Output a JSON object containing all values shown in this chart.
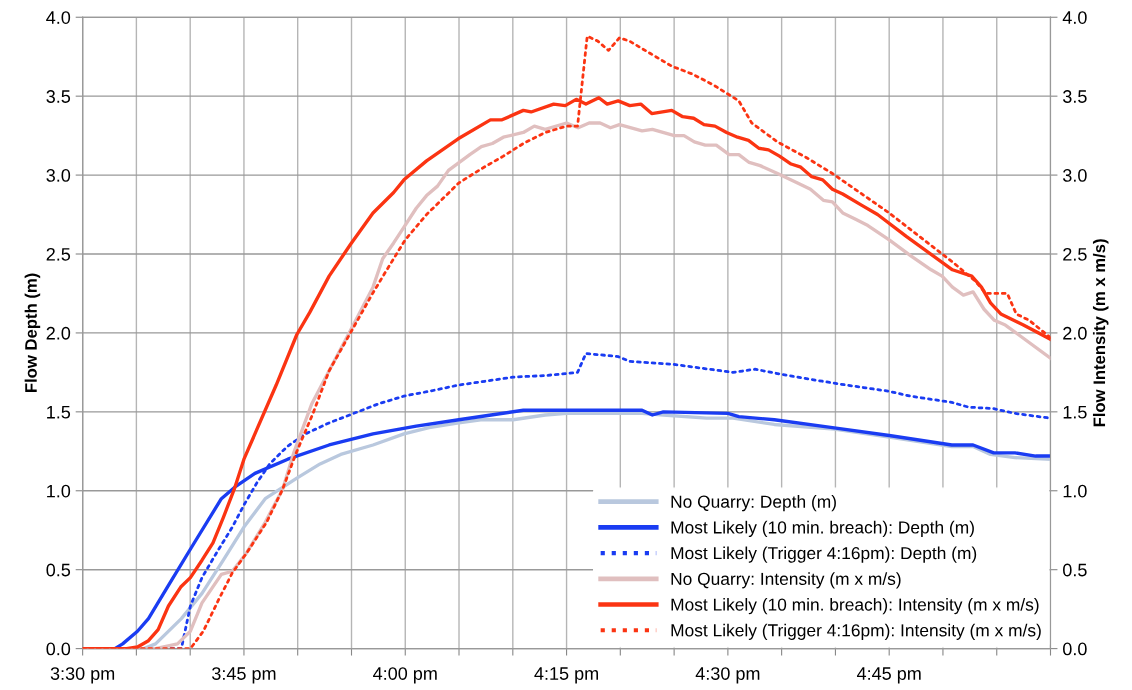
{
  "chart_data": {
    "type": "line",
    "ylabel": "Flow Depth (m)",
    "y2label": "Flow Intensity (m x m/s)",
    "xlim": [
      15.5,
      17.0
    ],
    "xticks": [
      {
        "value": 15.5,
        "label": "3:30 pm"
      },
      {
        "value": 15.5833,
        "label": null
      },
      {
        "value": 15.6667,
        "label": null
      },
      {
        "value": 15.75,
        "label": "3:45 pm"
      },
      {
        "value": 15.8333,
        "label": null
      },
      {
        "value": 15.9167,
        "label": null
      },
      {
        "value": 16.0,
        "label": "4:00 pm"
      },
      {
        "value": 16.0833,
        "label": null
      },
      {
        "value": 16.1667,
        "label": null
      },
      {
        "value": 16.25,
        "label": "4:15 pm"
      },
      {
        "value": 16.3333,
        "label": null
      },
      {
        "value": 16.4167,
        "label": null
      },
      {
        "value": 16.5,
        "label": "4:30 pm"
      },
      {
        "value": 16.5833,
        "label": null
      },
      {
        "value": 16.6667,
        "label": null
      },
      {
        "value": 16.75,
        "label": "4:45 pm"
      },
      {
        "value": 16.8333,
        "label": null
      },
      {
        "value": 16.9167,
        "label": null
      },
      {
        "value": 17.0,
        "label": null
      }
    ],
    "ylim": [
      0,
      4
    ],
    "yticks": [
      {
        "value": 0,
        "label": "0.0"
      },
      {
        "value": 0.5,
        "label": "0.5"
      },
      {
        "value": 1,
        "label": "1.0"
      },
      {
        "value": 1.5,
        "label": "1.5"
      },
      {
        "value": 2,
        "label": "2.0"
      },
      {
        "value": 2.5,
        "label": "2.5"
      },
      {
        "value": 3,
        "label": "3.0"
      },
      {
        "value": 3.5,
        "label": "3.5"
      },
      {
        "value": 4,
        "label": "4.0"
      }
    ],
    "y2lim": [
      0,
      4
    ],
    "y2ticks": [
      {
        "value": 0,
        "label": "0.0"
      },
      {
        "value": 0.5,
        "label": "0.5"
      },
      {
        "value": 1,
        "label": "1.0"
      },
      {
        "value": 1.5,
        "label": "1.5"
      },
      {
        "value": 2,
        "label": "2.0"
      },
      {
        "value": 2.5,
        "label": "2.5"
      },
      {
        "value": 3,
        "label": "3.0"
      },
      {
        "value": 3.5,
        "label": "3.5"
      },
      {
        "value": 4,
        "label": "4.0"
      }
    ],
    "grid": true,
    "legend": "bottom right",
    "marker": "none",
    "series": [
      {
        "name": "No Quarry: Depth (m)",
        "color": "#b9c8de",
        "line_style": "solid",
        "x": [
          15.5,
          15.595,
          15.613,
          15.653,
          15.685,
          15.718,
          15.75,
          15.783,
          15.832,
          15.868,
          15.9,
          15.95,
          15.998,
          16.037,
          16.083,
          16.117,
          16.167,
          16.217,
          16.25,
          16.367,
          16.4,
          16.467,
          16.508,
          16.572,
          16.665,
          16.75,
          16.847,
          16.88,
          16.907,
          16.945,
          17.0
        ],
        "values": [
          0,
          0,
          0.03,
          0.19,
          0.35,
          0.56,
          0.77,
          0.95,
          1.08,
          1.17,
          1.23,
          1.29,
          1.36,
          1.4,
          1.43,
          1.45,
          1.45,
          1.48,
          1.49,
          1.49,
          1.48,
          1.46,
          1.46,
          1.42,
          1.39,
          1.34,
          1.28,
          1.28,
          1.23,
          1.21,
          1.2
        ]
      },
      {
        "name": "Most Likely (10 min. breach): Depth (m)",
        "color": "#1a3cf2",
        "line_style": "solid",
        "x": [
          15.5,
          15.55,
          15.562,
          15.585,
          15.602,
          15.633,
          15.67,
          15.715,
          15.738,
          15.767,
          15.818,
          15.882,
          15.95,
          16.017,
          16.083,
          16.133,
          16.183,
          16.367,
          16.383,
          16.4,
          16.5,
          16.517,
          16.572,
          16.662,
          16.75,
          16.847,
          16.88,
          16.912,
          16.945,
          16.977,
          17.0
        ],
        "values": [
          0,
          0,
          0.03,
          0.11,
          0.19,
          0.4,
          0.65,
          0.95,
          1.03,
          1.11,
          1.2,
          1.29,
          1.36,
          1.41,
          1.45,
          1.48,
          1.51,
          1.51,
          1.48,
          1.5,
          1.49,
          1.47,
          1.45,
          1.4,
          1.35,
          1.29,
          1.29,
          1.24,
          1.24,
          1.22,
          1.22
        ]
      },
      {
        "name": "Most Likely (Trigger 4:16pm): Depth (m)",
        "color": "#1a3cf2",
        "line_style": "dotted",
        "x": [
          15.5,
          15.653,
          15.667,
          15.685,
          15.708,
          15.732,
          15.75,
          15.77,
          15.79,
          15.817,
          15.845,
          15.882,
          15.92,
          15.958,
          15.998,
          16.037,
          16.083,
          16.117,
          16.167,
          16.217,
          16.267,
          16.28,
          16.33,
          16.348,
          16.417,
          16.508,
          16.542,
          16.593,
          16.667,
          16.75,
          16.782,
          16.847,
          16.873,
          16.912,
          16.945,
          17.0
        ],
        "values": [
          0,
          0,
          0.27,
          0.45,
          0.61,
          0.77,
          0.91,
          1.05,
          1.17,
          1.28,
          1.36,
          1.43,
          1.49,
          1.55,
          1.6,
          1.63,
          1.67,
          1.69,
          1.72,
          1.73,
          1.75,
          1.87,
          1.85,
          1.82,
          1.8,
          1.75,
          1.77,
          1.73,
          1.68,
          1.63,
          1.6,
          1.56,
          1.53,
          1.52,
          1.49,
          1.46
        ]
      },
      {
        "name": "No Quarry: Intensity (m x m/s)",
        "color": "#e0bfbf",
        "line_style": "solid",
        "axis": "y2",
        "x": [
          15.5,
          15.613,
          15.647,
          15.667,
          15.685,
          15.715,
          15.732,
          15.753,
          15.783,
          15.81,
          15.828,
          15.855,
          15.882,
          15.913,
          15.95,
          15.965,
          15.982,
          15.998,
          16.017,
          16.033,
          16.05,
          16.067,
          16.1,
          16.118,
          16.135,
          16.152,
          16.183,
          16.2,
          16.217,
          16.25,
          16.268,
          16.285,
          16.302,
          16.318,
          16.332,
          16.367,
          16.383,
          16.417,
          16.432,
          16.448,
          16.465,
          16.482,
          16.502,
          16.517,
          16.533,
          16.55,
          16.577,
          16.608,
          16.628,
          16.648,
          16.662,
          16.678,
          16.698,
          16.717,
          16.75,
          16.783,
          16.815,
          16.832,
          16.848,
          16.865,
          16.88,
          16.897,
          16.913,
          16.93,
          16.95,
          17.0
        ],
        "values": [
          0,
          0,
          0.03,
          0.11,
          0.29,
          0.47,
          0.49,
          0.6,
          0.8,
          1.01,
          1.25,
          1.55,
          1.76,
          2.0,
          2.29,
          2.47,
          2.57,
          2.67,
          2.79,
          2.87,
          2.93,
          3.03,
          3.13,
          3.18,
          3.2,
          3.24,
          3.27,
          3.31,
          3.29,
          3.33,
          3.3,
          3.33,
          3.33,
          3.3,
          3.32,
          3.28,
          3.29,
          3.25,
          3.25,
          3.21,
          3.19,
          3.19,
          3.13,
          3.13,
          3.08,
          3.06,
          3.01,
          2.95,
          2.91,
          2.84,
          2.83,
          2.76,
          2.72,
          2.68,
          2.59,
          2.49,
          2.4,
          2.36,
          2.29,
          2.24,
          2.26,
          2.15,
          2.08,
          2.05,
          1.99,
          1.84
        ]
      },
      {
        "name": "Most Likely (10 min. breach): Intensity (m x m/s)",
        "color": "#fb3412",
        "line_style": "solid",
        "axis": "y2",
        "x": [
          15.5,
          15.568,
          15.585,
          15.602,
          15.617,
          15.633,
          15.652,
          15.667,
          15.685,
          15.702,
          15.718,
          15.735,
          15.75,
          15.767,
          15.8,
          15.832,
          15.852,
          15.882,
          15.915,
          15.95,
          15.982,
          15.998,
          16.033,
          16.082,
          16.132,
          16.15,
          16.183,
          16.195,
          16.23,
          16.248,
          16.265,
          16.28,
          16.3,
          16.313,
          16.33,
          16.348,
          16.365,
          16.382,
          16.413,
          16.43,
          16.447,
          16.463,
          16.48,
          16.498,
          16.515,
          16.532,
          16.548,
          16.563,
          16.58,
          16.598,
          16.613,
          16.63,
          16.647,
          16.662,
          16.678,
          16.707,
          16.732,
          16.777,
          16.848,
          16.878,
          16.893,
          16.907,
          16.923,
          16.958,
          17.0
        ],
        "values": [
          0,
          0,
          0.01,
          0.05,
          0.12,
          0.27,
          0.39,
          0.45,
          0.56,
          0.67,
          0.83,
          1.01,
          1.2,
          1.36,
          1.67,
          1.99,
          2.13,
          2.36,
          2.56,
          2.76,
          2.89,
          2.97,
          3.09,
          3.23,
          3.35,
          3.35,
          3.41,
          3.4,
          3.45,
          3.44,
          3.48,
          3.45,
          3.49,
          3.45,
          3.47,
          3.44,
          3.45,
          3.39,
          3.41,
          3.37,
          3.36,
          3.32,
          3.31,
          3.27,
          3.24,
          3.22,
          3.17,
          3.16,
          3.12,
          3.07,
          3.05,
          2.99,
          2.97,
          2.91,
          2.88,
          2.81,
          2.75,
          2.61,
          2.4,
          2.36,
          2.29,
          2.19,
          2.12,
          2.05,
          1.96
        ]
      },
      {
        "name": "Most Likely (Trigger 4:16pm): Intensity (m x m/s)",
        "color": "#fb3412",
        "line_style": "dotted",
        "axis": "y2",
        "x": [
          15.5,
          15.667,
          15.687,
          15.712,
          15.732,
          15.755,
          15.785,
          15.81,
          15.83,
          15.857,
          15.882,
          15.915,
          15.948,
          15.967,
          16.0,
          16.033,
          16.083,
          16.118,
          16.152,
          16.183,
          16.217,
          16.25,
          16.267,
          16.282,
          16.298,
          16.315,
          16.332,
          16.347,
          16.38,
          16.413,
          16.445,
          16.478,
          16.517,
          16.537,
          16.577,
          16.622,
          16.662,
          16.75,
          16.848,
          16.883,
          16.9,
          16.933,
          16.947,
          16.967,
          17.0
        ],
        "values": [
          0,
          0,
          0.11,
          0.32,
          0.48,
          0.61,
          0.8,
          1.01,
          1.23,
          1.49,
          1.76,
          2.0,
          2.24,
          2.37,
          2.59,
          2.75,
          2.95,
          3.04,
          3.12,
          3.2,
          3.27,
          3.31,
          3.31,
          3.88,
          3.85,
          3.79,
          3.87,
          3.85,
          3.77,
          3.69,
          3.64,
          3.57,
          3.47,
          3.33,
          3.21,
          3.11,
          3.01,
          2.76,
          2.45,
          2.33,
          2.25,
          2.25,
          2.12,
          2.08,
          1.97
        ]
      }
    ]
  }
}
